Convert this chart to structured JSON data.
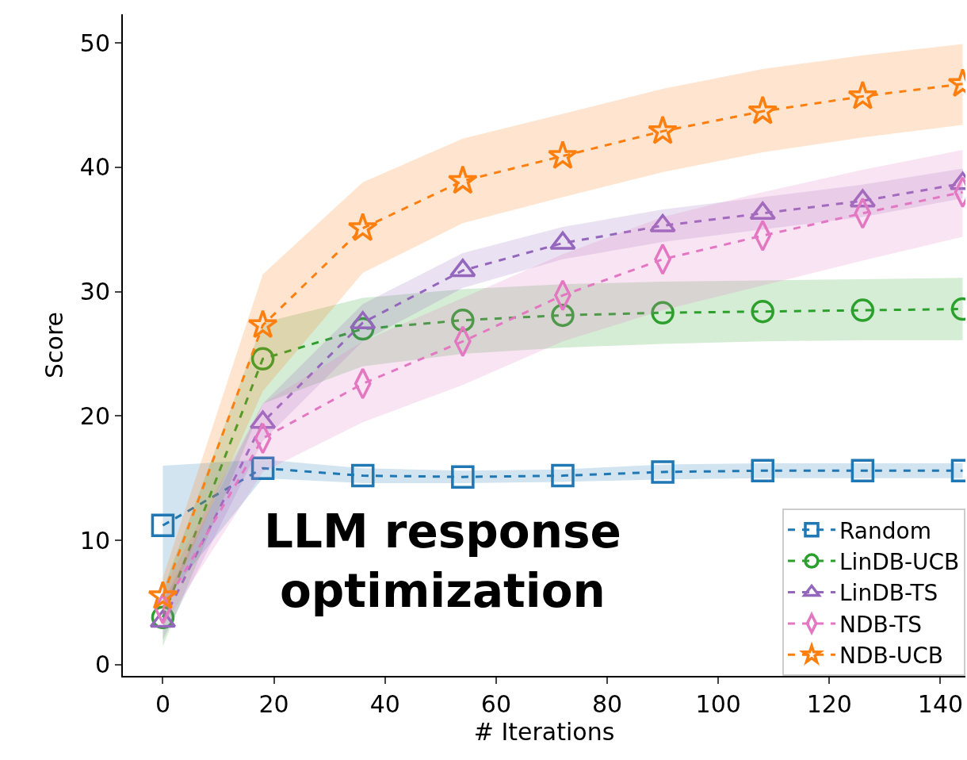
{
  "chart_data": {
    "type": "line",
    "xlabel": "# Iterations",
    "ylabel": "Score",
    "x": [
      0,
      18,
      36,
      54,
      72,
      90,
      108,
      126,
      144
    ],
    "series": [
      {
        "name": "Random",
        "color": "#1f77b4",
        "marker": "square",
        "values": [
          11.2,
          15.8,
          15.2,
          15.1,
          15.2,
          15.5,
          15.6,
          15.6,
          15.6
        ],
        "lower": [
          5.0,
          15.0,
          14.6,
          14.6,
          14.7,
          14.9,
          15.0,
          15.0,
          15.0
        ],
        "upper": [
          16.0,
          16.5,
          15.8,
          15.6,
          15.7,
          16.1,
          16.2,
          16.2,
          16.2
        ]
      },
      {
        "name": "LinDB-UCB",
        "color": "#2ca02c",
        "marker": "circle",
        "values": [
          3.8,
          24.6,
          27.0,
          27.7,
          28.1,
          28.3,
          28.4,
          28.5,
          28.6
        ],
        "lower": [
          1.5,
          21.0,
          24.0,
          25.0,
          25.5,
          25.8,
          26.0,
          26.1,
          26.1
        ],
        "upper": [
          6.0,
          27.5,
          29.5,
          30.2,
          30.6,
          30.8,
          30.9,
          31.0,
          31.1
        ]
      },
      {
        "name": "LinDB-TS",
        "color": "#9467bd",
        "marker": "triangle",
        "values": [
          3.5,
          19.5,
          27.5,
          31.7,
          33.9,
          35.3,
          36.3,
          37.3,
          38.7
        ],
        "lower": [
          2.0,
          18.0,
          26.0,
          30.3,
          32.6,
          34.0,
          35.0,
          36.0,
          37.5
        ],
        "upper": [
          5.0,
          21.0,
          29.0,
          33.1,
          35.2,
          36.6,
          37.6,
          38.6,
          39.9
        ]
      },
      {
        "name": "NDB-TS",
        "color": "#e377c2",
        "marker": "diamond",
        "values": [
          4.5,
          18.2,
          22.6,
          26.0,
          29.7,
          32.6,
          34.5,
          36.3,
          38.0
        ],
        "lower": [
          3.0,
          15.5,
          19.5,
          22.5,
          26.0,
          28.5,
          30.5,
          32.5,
          34.4
        ],
        "upper": [
          6.0,
          21.0,
          26.0,
          29.5,
          33.0,
          36.0,
          38.0,
          39.8,
          41.4
        ]
      },
      {
        "name": "NDB-UCB",
        "color": "#ff7f0e",
        "marker": "star",
        "values": [
          5.5,
          27.3,
          35.1,
          38.9,
          40.9,
          42.9,
          44.5,
          45.7,
          46.7
        ],
        "lower": [
          4.0,
          22.0,
          31.5,
          35.5,
          37.6,
          39.6,
          41.2,
          42.4,
          43.4
        ],
        "upper": [
          7.0,
          31.4,
          38.8,
          42.3,
          44.3,
          46.3,
          47.9,
          49.0,
          49.9
        ]
      }
    ],
    "line_style": "dashed",
    "xlim": [
      -7.2,
      144.5
    ],
    "xticks": [
      0,
      20,
      40,
      60,
      80,
      100,
      120,
      140
    ],
    "ylim": [
      -0.9,
      52.3
    ],
    "yticks": [
      0,
      10,
      20,
      30,
      40,
      50
    ],
    "legend": "bottom right",
    "annotations": [
      "LLM response\noptimization"
    ]
  }
}
